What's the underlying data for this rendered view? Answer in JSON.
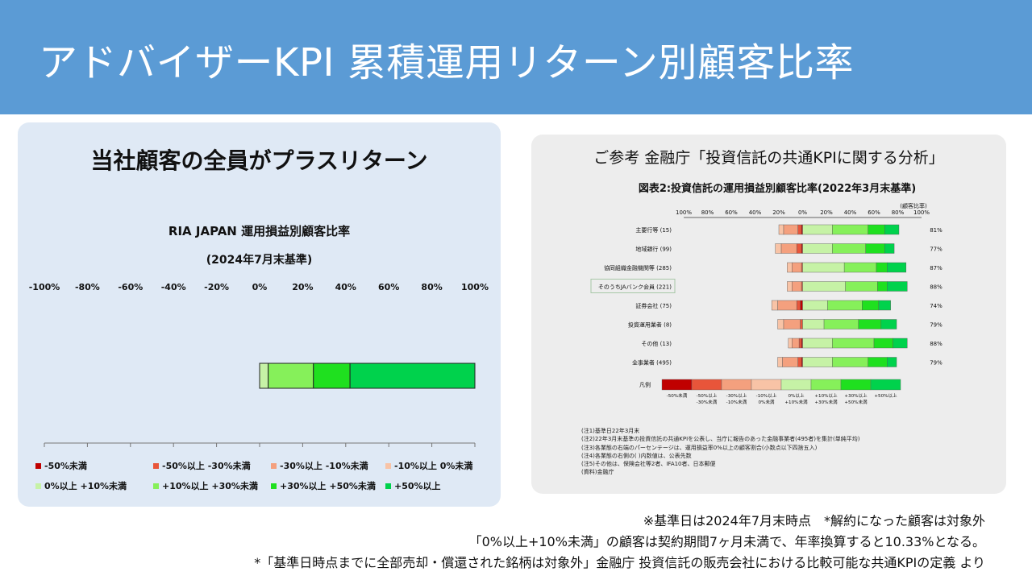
{
  "title": "アドバイザーKPI 累積運用リターン別顧客比率",
  "left": {
    "heading": "当社顧客の全員がプラスリターン",
    "chart_title": "RIA JAPAN 運用損益別顧客比率",
    "chart_subtitle": "(2024年7月末基準)"
  },
  "chart_data": [
    {
      "type": "bar",
      "orientation": "horizontal-stacked-diverging",
      "title": "RIA JAPAN 運用損益別顧客比率",
      "subtitle": "(2024年7月末基準)",
      "xlim": [
        -100,
        100
      ],
      "x_ticks": [
        "-100%",
        "-80%",
        "-60%",
        "-40%",
        "-20%",
        "0%",
        "20%",
        "40%",
        "60%",
        "80%",
        "100%"
      ],
      "legend_placement": "bottom",
      "series": [
        {
          "name": "-50%未満",
          "value": 0,
          "color": "#c00000"
        },
        {
          "name": "-50%以上 -30%未満",
          "value": 0,
          "color": "#e8553a"
        },
        {
          "name": "-30%以上 -10%未満",
          "value": 0,
          "color": "#f4a07e"
        },
        {
          "name": "-10%以上 0%未満",
          "value": 0,
          "color": "#f8c3a6"
        },
        {
          "name": "0%以上 +10%未満",
          "value": 4,
          "color": "#c6f2a6"
        },
        {
          "name": "+10%以上 +30%未満",
          "value": 21,
          "color": "#86f05a"
        },
        {
          "name": "+30%以上 +50%未満",
          "value": 17,
          "color": "#1fe01f"
        },
        {
          "name": "+50%以上",
          "value": 58,
          "color": "#00d24c"
        }
      ]
    },
    {
      "type": "bar",
      "orientation": "horizontal-stacked-diverging",
      "title": "図表2:投資信託の運用損益別顧客比率(2022年3月末基準)",
      "right_axis_label": "(顧客比率)",
      "x_ticks": [
        "100%",
        "80%",
        "60%",
        "40%",
        "20%",
        "0%",
        "20%",
        "40%",
        "60%",
        "80%",
        "100%"
      ],
      "xlim": [
        -100,
        100
      ],
      "rows": [
        {
          "label": "主要行等 (15)",
          "segments": [
            -1,
            -3,
            -12,
            -4,
            25,
            30,
            14,
            12
          ],
          "positive": "81%"
        },
        {
          "label": "地域銀行 (99)",
          "segments": [
            -1,
            -4,
            -13,
            -5,
            25,
            28,
            16,
            8
          ],
          "positive": "77%"
        },
        {
          "label": "協同組織金融機関等 (285)",
          "segments": [
            0,
            -1,
            -8,
            -4,
            35,
            27,
            9,
            16
          ],
          "positive": "87%"
        },
        {
          "label": "そのうちJAバンク会員 (221)",
          "segments": [
            0,
            -1,
            -8,
            -4,
            36,
            27,
            8,
            17
          ],
          "positive": "88%"
        },
        {
          "label": "証券会社 (75)",
          "segments": [
            -2,
            -3,
            -16,
            -5,
            21,
            29,
            14,
            10
          ],
          "positive": "74%"
        },
        {
          "label": "投資運用業者 (8)",
          "segments": [
            0,
            -2,
            -14,
            -5,
            18,
            29,
            19,
            13
          ],
          "positive": "79%"
        },
        {
          "label": "その他 (13)",
          "segments": [
            -1,
            -2,
            -6,
            -3,
            25,
            35,
            16,
            12
          ],
          "positive": "88%"
        },
        {
          "label": "全事業者 (495)",
          "segments": [
            -1,
            -3,
            -13,
            -4,
            25,
            30,
            16,
            8
          ],
          "positive": "79%"
        }
      ],
      "legend_row_label": "凡例",
      "legend": [
        "-50%未満",
        "-50%以上 -30%未満",
        "-30%以上 -10%未満",
        "-10%以上 0%未満",
        "0%以上 +10%未満",
        "+10%以上 +30%未満",
        "+30%以上 +50%未満",
        "+50%以上"
      ]
    }
  ],
  "right": {
    "ref_title": "ご参考 金融庁「投資信託の共通KPIに関する分析」",
    "caption": "図表2:投資信託の運用損益別顧客比率(2022年3月末基準)",
    "axis_note": "(顧客比率)",
    "notes": [
      "(注1)基準日22年3月末",
      "(注2)22年3月末基準の投資信託の共通KPIを公表し、当庁に報告のあった金融事業者(495者)を集計(単純平均)",
      "(注3)各業態の右端のパーセンテージは、運用損益率0%以上の顧客割合(小数点以下四捨五入)",
      "(注4)各業態の右側の( )内数値は、公表先数",
      "(注5)その他は、保険会社等2者、IFA10者、日本郵便",
      "(資料)金融庁"
    ]
  },
  "footer": {
    "line1": "※基準日は2024年7月末時点　*解約になった顧客は対象外",
    "line2": "「0%以上+10%未満」の顧客は契約期間7ヶ月未満で、年率換算すると10.33%となる。",
    "line3": "*「基準日時点までに全部売却・償還された銘柄は対象外」金融庁 投資信託の販売会社における比較可能な共通KPIの定義 より"
  }
}
